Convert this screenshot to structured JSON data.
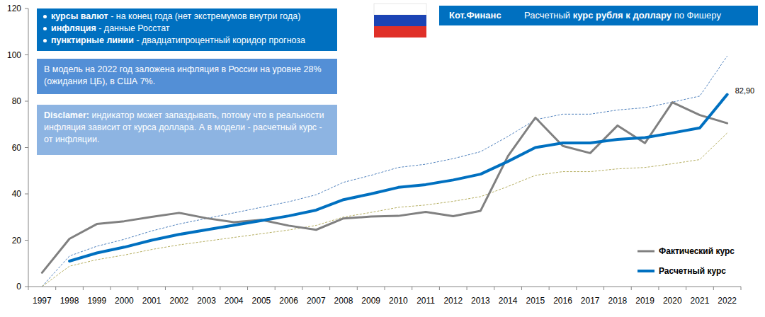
{
  "chart_data": {
    "type": "line",
    "title": "Расчетный курс рубля к доллару по Фишеру",
    "subtitle": "Кот.Финанс",
    "annotations": [
      {
        "items": [
          "курсы валют - на конец года (нет экстремумов внутри года)",
          "инфляция - данные Росстат",
          "пунктирные линии - двадцатипроцентный коридор прогноза"
        ]
      },
      {
        "text": "В модель на 2022 год заложена инфляция в России на уровне 28% (ожидания ЦБ), в США 7%."
      },
      {
        "text": "Disclamer: индикатор может запаздывать, потому что в реальности инфляция зависит от курса доллара. А в модели - расчетный курс - от инфляции."
      }
    ],
    "categories": [
      "1997",
      "1998",
      "1999",
      "2000",
      "2001",
      "2002",
      "2003",
      "2004",
      "2005",
      "2006",
      "2007",
      "2008",
      "2009",
      "2010",
      "2011",
      "2012",
      "2013",
      "2014",
      "2015",
      "2016",
      "2017",
      "2018",
      "2019",
      "2020",
      "2021",
      "2022"
    ],
    "series": [
      {
        "name": "Фактический курс",
        "color": "#808080",
        "line_style": "solid",
        "values": [
          6.0,
          20.6,
          27.0,
          28.2,
          30.1,
          31.8,
          29.5,
          27.8,
          28.8,
          26.3,
          24.5,
          29.4,
          30.2,
          30.5,
          32.2,
          30.4,
          32.7,
          56.3,
          72.9,
          60.7,
          57.6,
          69.5,
          61.9,
          79.5,
          74.0,
          70.5
        ]
      },
      {
        "name": "Расчетный курс",
        "color": "#0070c0",
        "line_style": "solid",
        "values": [
          null,
          11.0,
          14.5,
          17.0,
          20.0,
          22.5,
          24.5,
          26.5,
          28.5,
          30.5,
          33.0,
          37.5,
          40.0,
          42.8,
          44.0,
          46.0,
          48.5,
          54.0,
          60.0,
          62.0,
          62.0,
          63.5,
          64.3,
          66.3,
          68.5,
          82.9
        ],
        "value_labels": [
          null,
          null,
          null,
          null,
          null,
          null,
          null,
          null,
          null,
          null,
          null,
          null,
          null,
          null,
          null,
          null,
          null,
          null,
          null,
          null,
          null,
          null,
          null,
          null,
          null,
          "82,90"
        ]
      },
      {
        "color": "#4f81bd",
        "line_style": "dashed",
        "values": [
          0,
          13.2,
          17.4,
          20.4,
          24.0,
          27.0,
          29.4,
          31.8,
          34.2,
          36.6,
          39.6,
          45.0,
          48.0,
          51.4,
          52.8,
          55.2,
          58.2,
          64.8,
          72.0,
          74.4,
          74.4,
          76.2,
          77.2,
          79.6,
          82.2,
          99.5
        ]
      },
      {
        "color": "#b5ae60",
        "line_style": "dashed",
        "values": [
          0,
          8.8,
          11.6,
          13.6,
          16.0,
          18.0,
          19.6,
          21.2,
          22.8,
          24.4,
          26.4,
          30.0,
          32.0,
          34.2,
          35.2,
          36.8,
          38.8,
          43.2,
          48.0,
          49.6,
          49.6,
          50.8,
          51.4,
          53.0,
          54.8,
          66.3
        ]
      }
    ],
    "ylim": [
      0,
      120
    ],
    "yticks": [
      0,
      20,
      40,
      60,
      80,
      100,
      120
    ],
    "grid": false,
    "legend": "bottom-right"
  }
}
